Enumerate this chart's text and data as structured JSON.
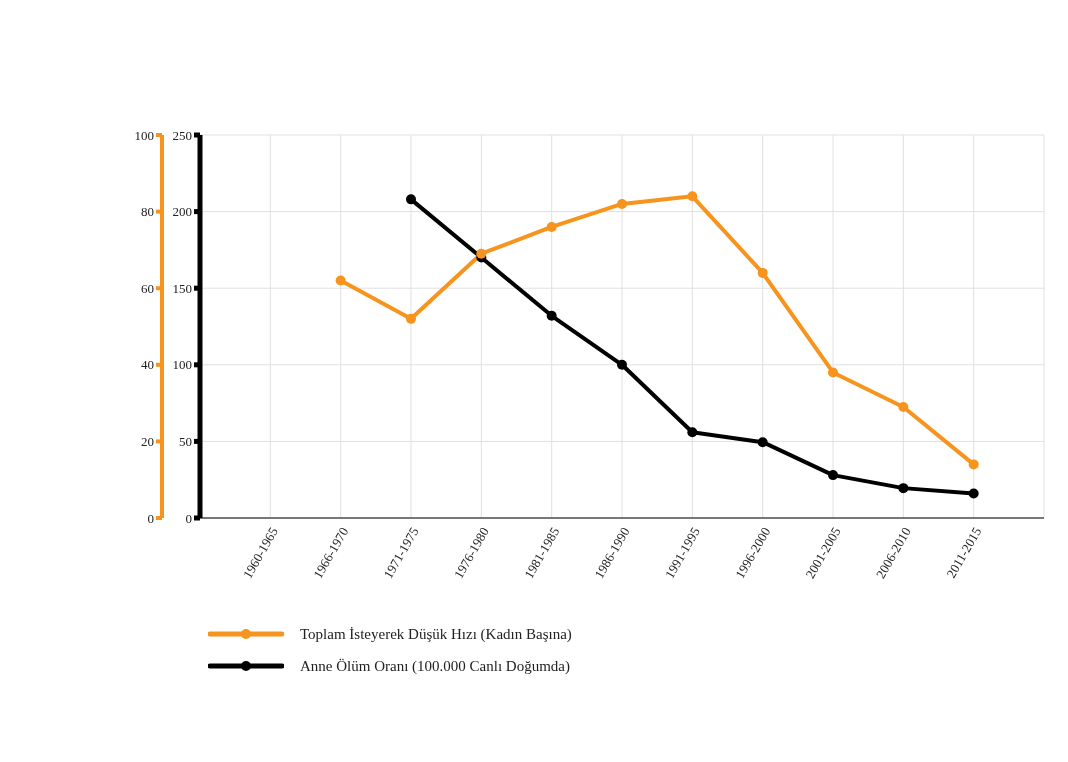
{
  "chart_data": {
    "type": "line",
    "categories": [
      null,
      "1960-1965",
      "1966-1970",
      "1971-1975",
      "1976-1980",
      "1981-1985",
      "1986-1990",
      "1991-1995",
      "1996-2000",
      "2001-2005",
      "2006-2010",
      "2011-2015",
      null
    ],
    "series": [
      {
        "name": "Toplam İsteyerek Düşük Hızı (Kadın Başına)",
        "color": "#f7941d",
        "axis": "y2",
        "values": [
          null,
          null,
          62,
          52,
          69,
          76,
          82,
          84,
          64,
          38,
          29,
          14,
          null
        ]
      },
      {
        "name": "Anne Ölüm Oranı (100.000 Canlı Doğumda)",
        "color": "#000000",
        "values": [
          null,
          null,
          null,
          208,
          170,
          132,
          100,
          56,
          49.5,
          28,
          19.5,
          16,
          null
        ]
      }
    ],
    "ylim": [
      0,
      250
    ],
    "yticks": [
      0,
      50,
      100,
      150,
      200,
      250
    ],
    "y2lim": [
      0,
      100
    ],
    "y2ticks": [
      0,
      20,
      40,
      60,
      80,
      100
    ],
    "grid": true,
    "legend": "bottom",
    "marker": "circle",
    "line_style": "solid"
  }
}
